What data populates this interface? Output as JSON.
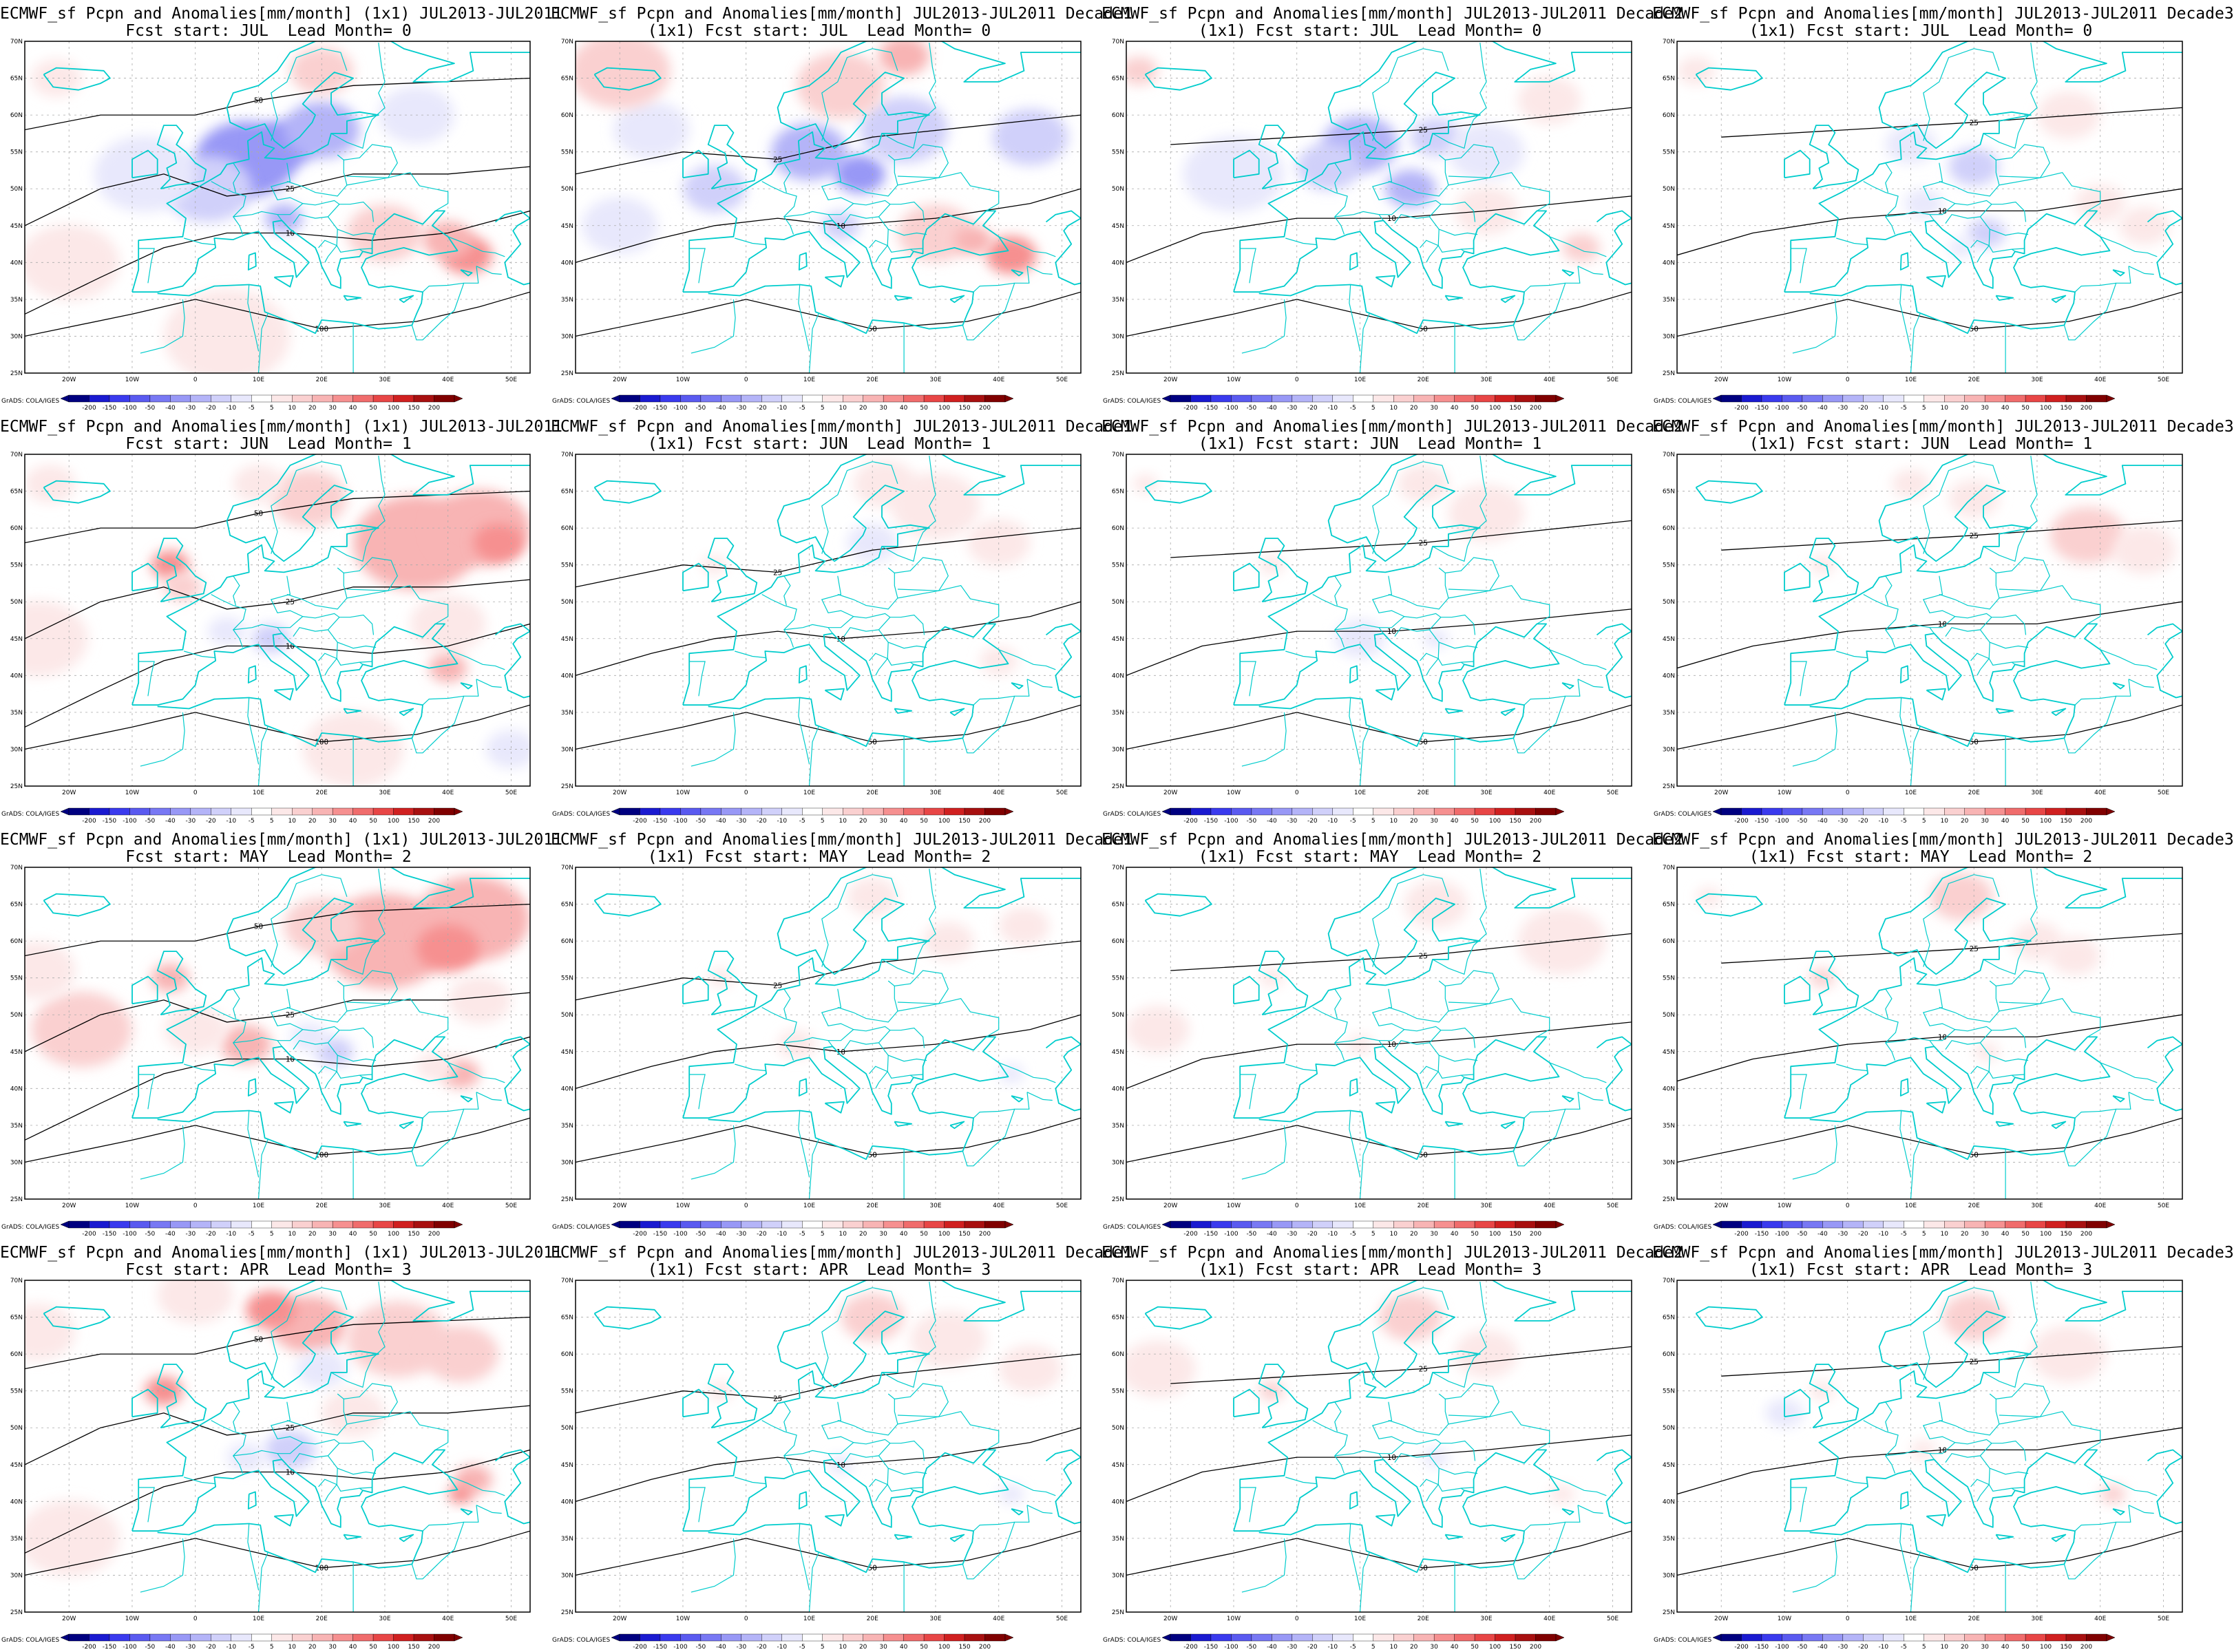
{
  "lat_labels": [
    "70N",
    "65N",
    "60N",
    "55N",
    "50N",
    "45N",
    "40N",
    "35N",
    "30N",
    "25N"
  ],
  "lon_labels": [
    "20W",
    "10W",
    "0",
    "10E",
    "20E",
    "30E",
    "40E",
    "50E"
  ],
  "colorbar": {
    "ticks": [
      "-200",
      "-150",
      "-100",
      "-50",
      "-40",
      "-30",
      "-20",
      "-10",
      "-5",
      "5",
      "10",
      "20",
      "30",
      "40",
      "50",
      "100",
      "150",
      "200"
    ],
    "colors": [
      "#000080",
      "#1a1ad0",
      "#3a3aee",
      "#5a5af0",
      "#7878f4",
      "#9898f6",
      "#b4b4f8",
      "#d0d0fa",
      "#e8e8fc",
      "#ffffff",
      "#fce8e8",
      "#fad0d0",
      "#f8b4b4",
      "#f69090",
      "#f06c6c",
      "#e84646",
      "#d02020",
      "#a81010",
      "#800000"
    ]
  },
  "credit": "GrADS: COLA/IGES",
  "colors": {
    "coast": "#00cccc",
    "contour": "#000000",
    "grid": "#aaaaaa"
  },
  "panels": [
    {
      "line1": "ECMWF_sf Pcpn and Anomalies[mm/month] (1x1) JUL2013-JUL2011",
      "line2": "Fcst start: JUL  Lead Month= 0",
      "lead": 0,
      "period": "month"
    },
    {
      "line1": "ECMWF_sf Pcpn and Anomalies[mm/month] JUL2013-JUL2011 Decade1",
      "line2": "(1x1) Fcst start: JUL  Lead Month= 0",
      "lead": 0,
      "period": "d1"
    },
    {
      "line1": "ECMWF_sf Pcpn and Anomalies[mm/month] JUL2013-JUL2011 Decade2",
      "line2": "(1x1) Fcst start: JUL  Lead Month= 0",
      "lead": 0,
      "period": "d2"
    },
    {
      "line1": "ECMWF_sf Pcpn and Anomalies[mm/month] JUL2013-JUL2011 Decade3",
      "line2": "(1x1) Fcst start: JUL  Lead Month= 0",
      "lead": 0,
      "period": "d3"
    },
    {
      "line1": "ECMWF_sf Pcpn and Anomalies[mm/month] (1x1) JUL2013-JUL2011",
      "line2": "Fcst start: JUN  Lead Month= 1",
      "lead": 1,
      "period": "month"
    },
    {
      "line1": "ECMWF_sf Pcpn and Anomalies[mm/month] JUL2013-JUL2011 Decade1",
      "line2": "(1x1) Fcst start: JUN  Lead Month= 1",
      "lead": 1,
      "period": "d1"
    },
    {
      "line1": "ECMWF_sf Pcpn and Anomalies[mm/month] JUL2013-JUL2011 Decade2",
      "line2": "(1x1) Fcst start: JUN  Lead Month= 1",
      "lead": 1,
      "period": "d2"
    },
    {
      "line1": "ECMWF_sf Pcpn and Anomalies[mm/month] JUL2013-JUL2011 Decade3",
      "line2": "(1x1) Fcst start: JUN  Lead Month= 1",
      "lead": 1,
      "period": "d3"
    },
    {
      "line1": "ECMWF_sf Pcpn and Anomalies[mm/month] (1x1) JUL2013-JUL2011",
      "line2": "Fcst start: MAY  Lead Month= 2",
      "lead": 2,
      "period": "month"
    },
    {
      "line1": "ECMWF_sf Pcpn and Anomalies[mm/month] JUL2013-JUL2011 Decade1",
      "line2": "(1x1) Fcst start: MAY  Lead Month= 2",
      "lead": 2,
      "period": "d1"
    },
    {
      "line1": "ECMWF_sf Pcpn and Anomalies[mm/month] JUL2013-JUL2011 Decade2",
      "line2": "(1x1) Fcst start: MAY  Lead Month= 2",
      "lead": 2,
      "period": "d2"
    },
    {
      "line1": "ECMWF_sf Pcpn and Anomalies[mm/month] JUL2013-JUL2011 Decade3",
      "line2": "(1x1) Fcst start: MAY  Lead Month= 2",
      "lead": 2,
      "period": "d3"
    },
    {
      "line1": "ECMWF_sf Pcpn and Anomalies[mm/month] (1x1) JUL2013-JUL2011",
      "line2": "Fcst start: APR  Lead Month= 3",
      "lead": 3,
      "period": "month"
    },
    {
      "line1": "ECMWF_sf Pcpn and Anomalies[mm/month] JUL2013-JUL2011 Decade1",
      "line2": "(1x1) Fcst start: APR  Lead Month= 3",
      "lead": 3,
      "period": "d1"
    },
    {
      "line1": "ECMWF_sf Pcpn and Anomalies[mm/month] JUL2013-JUL2011 Decade2",
      "line2": "(1x1) Fcst start: APR  Lead Month= 3",
      "lead": 3,
      "period": "d2"
    },
    {
      "line1": "ECMWF_sf Pcpn and Anomalies[mm/month] JUL2013-JUL2011 Decade3",
      "line2": "(1x1) Fcst start: APR  Lead Month= 3",
      "lead": 3,
      "period": "d3"
    }
  ]
}
